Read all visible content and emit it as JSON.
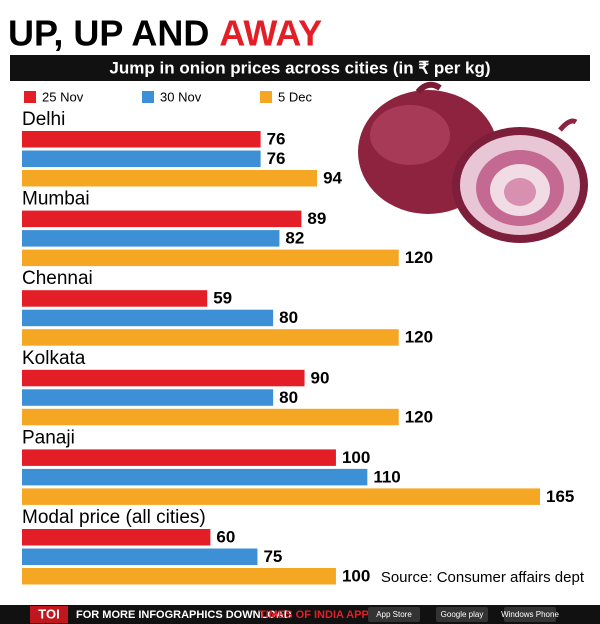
{
  "chart_data": {
    "type": "bar",
    "orientation": "horizontal",
    "title": "UP, UP AND",
    "title_accent": "AWAY",
    "subtitle": "Jump in onion prices across cities (in ₹ per kg)",
    "categories": [
      "Delhi",
      "Mumbai",
      "Chennai",
      "Kolkata",
      "Panaji",
      "Modal price (all cities)"
    ],
    "series": [
      {
        "name": "25 Nov",
        "color": "#e31e26",
        "values": [
          76,
          89,
          59,
          90,
          100,
          60
        ]
      },
      {
        "name": "30 Nov",
        "color": "#3d8fd6",
        "values": [
          76,
          82,
          80,
          80,
          110,
          75
        ]
      },
      {
        "name": "5 Dec",
        "color": "#f5a623",
        "values": [
          94,
          120,
          120,
          120,
          165,
          100
        ]
      }
    ],
    "xlim": [
      0,
      165
    ],
    "source": "Source: Consumer affairs dept"
  },
  "footer": {
    "brand": "TOI",
    "text": "FOR MORE INFOGRAPHICS DOWNLOAD",
    "app": "TIMES OF INDIA APP",
    "badges": [
      "App Store",
      "Google play",
      "Windows Phone"
    ]
  }
}
